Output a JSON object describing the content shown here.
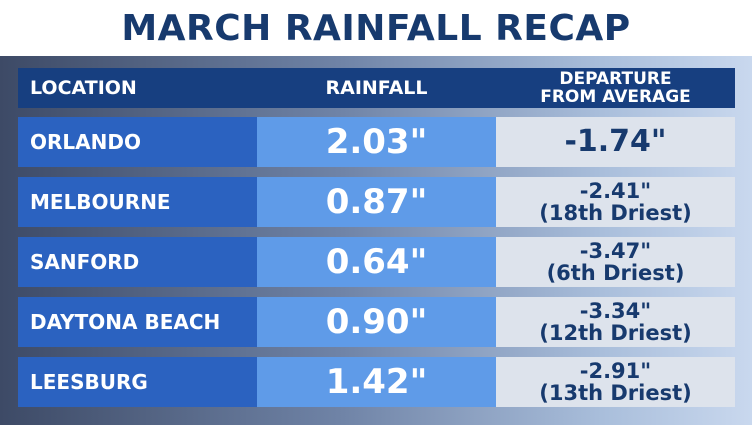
{
  "title": "MARCH RAINFALL RECAP",
  "headers": {
    "location": "LOCATION",
    "rainfall": "RAINFALL",
    "departure_line1": "DEPARTURE",
    "departure_line2": "FROM AVERAGE"
  },
  "rows": [
    {
      "location": "ORLANDO",
      "rainfall": "2.03\"",
      "departure": "-1.74\"",
      "note": ""
    },
    {
      "location": "MELBOURNE",
      "rainfall": "0.87\"",
      "departure": "-2.41\"",
      "note": "(18th Driest)"
    },
    {
      "location": "SANFORD",
      "rainfall": "0.64\"",
      "departure": "-3.47\"",
      "note": "(6th Driest)"
    },
    {
      "location": "DAYTONA BEACH",
      "rainfall": "0.90\"",
      "departure": "-3.34\"",
      "note": "(12th Driest)"
    },
    {
      "location": "LEESBURG",
      "rainfall": "1.42\"",
      "departure": "-2.91\"",
      "note": "(13th Driest)"
    }
  ],
  "colors": {
    "header": "#173f80",
    "location_cell": "#2b62c0",
    "rainfall_cell": "#5f9be8",
    "departure_cell": "#dde3ec",
    "title_text": "#173a6e"
  }
}
